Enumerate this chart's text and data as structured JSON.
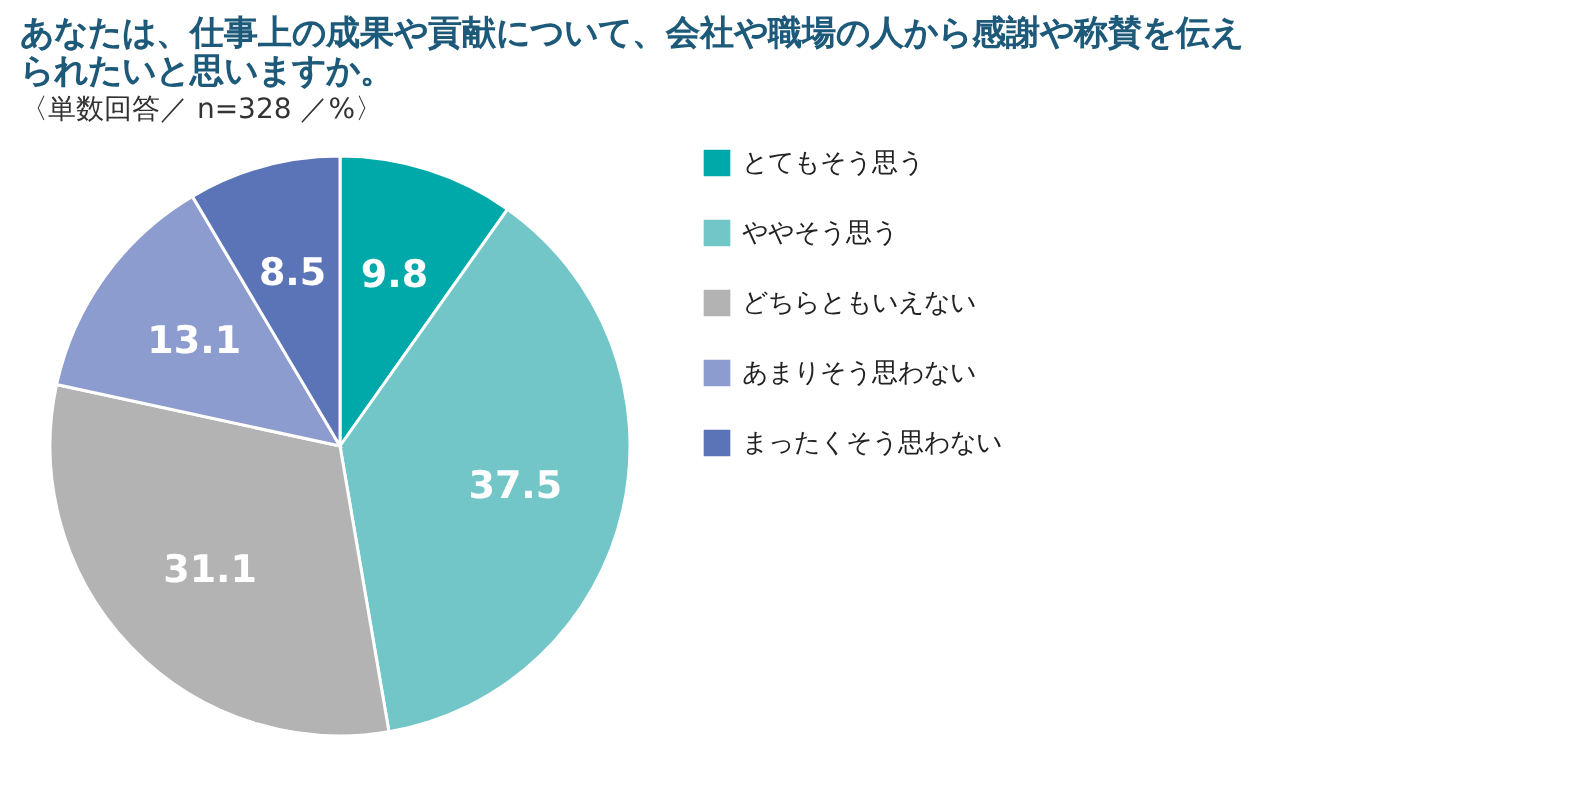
{
  "chart_data": {
    "type": "pie",
    "title": "あなたは、仕事上の成果や貢献について、会社や職場の人から感謝や称賛を伝えられたいと思いますか。",
    "subtitle": "〈単数回答／ n=328 ／%〉",
    "categories": [
      "とてもそう思う",
      "ややそう思う",
      "どちらともいえない",
      "あまりそう思わない",
      "まったくそう思わない"
    ],
    "values": [
      9.8,
      37.5,
      31.1,
      13.1,
      8.5
    ],
    "colors": [
      "#00a9a9",
      "#72c6c7",
      "#b3b3b3",
      "#8d9ccf",
      "#5b73b7"
    ],
    "data_labels": true,
    "legend": "right"
  }
}
